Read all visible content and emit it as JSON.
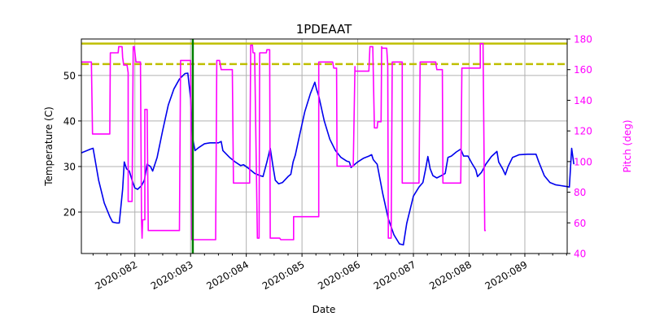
{
  "chart_data": {
    "type": "line",
    "title": "1PDEAAT",
    "xlabel": "Date",
    "ylabel": "Temperature (C)",
    "y2label": "Pitch (deg)",
    "xlim": [
      81.04,
      89.76
    ],
    "ylim": [
      10.9,
      58.0
    ],
    "y2lim": [
      40,
      180
    ],
    "xticks": [
      82,
      83,
      84,
      85,
      86,
      87,
      88,
      89
    ],
    "xtick_labels": [
      "2020:082",
      "2020:083",
      "2020:084",
      "2020:085",
      "2020:086",
      "2020:087",
      "2020:088",
      "2020:089"
    ],
    "yticks": [
      20,
      30,
      40,
      50
    ],
    "y2ticks": [
      40,
      60,
      80,
      100,
      120,
      140,
      160,
      180
    ],
    "grid": true,
    "legend": null,
    "colors": {
      "temperature": "#0000ee",
      "pitch": "#ff00ff",
      "limit_solid": "#bfbf00",
      "limit_dashed": "#bfbf00",
      "now_line": "#008000",
      "axis_right": "#ff00ff",
      "grid": "#b0b0b0"
    },
    "hlines": [
      {
        "name": "planning limit",
        "y": 57.0,
        "style": "solid",
        "color": "#bfbf00"
      },
      {
        "name": "caution limit",
        "y": 52.5,
        "style": "dashed",
        "color": "#bfbf00"
      }
    ],
    "vlines": [
      {
        "name": "current time",
        "x": 83.04,
        "color": "#008000"
      }
    ],
    "series": [
      {
        "name": "Temperature",
        "axis": "left",
        "color": "#0000ee",
        "points": [
          [
            81.04,
            33.0
          ],
          [
            81.2,
            33.8
          ],
          [
            81.25,
            34.0
          ],
          [
            81.35,
            27.0
          ],
          [
            81.45,
            22.0
          ],
          [
            81.55,
            19.0
          ],
          [
            81.6,
            17.8
          ],
          [
            81.67,
            17.6
          ],
          [
            81.72,
            17.6
          ],
          [
            81.78,
            25.0
          ],
          [
            81.81,
            31.0
          ],
          [
            81.85,
            29.5
          ],
          [
            81.9,
            29.0
          ],
          [
            81.95,
            27.0
          ],
          [
            82.0,
            25.3
          ],
          [
            82.05,
            25.0
          ],
          [
            82.12,
            25.8
          ],
          [
            82.17,
            27.0
          ],
          [
            82.22,
            30.5
          ],
          [
            82.28,
            30.0
          ],
          [
            82.32,
            29.0
          ],
          [
            82.4,
            32.0
          ],
          [
            82.5,
            38.0
          ],
          [
            82.6,
            43.5
          ],
          [
            82.7,
            47.0
          ],
          [
            82.8,
            49.2
          ],
          [
            82.9,
            50.4
          ],
          [
            82.95,
            50.5
          ],
          [
            83.0,
            45.0
          ],
          [
            83.04,
            36.0
          ],
          [
            83.08,
            33.5
          ],
          [
            83.15,
            34.2
          ],
          [
            83.25,
            35.0
          ],
          [
            83.35,
            35.2
          ],
          [
            83.5,
            35.2
          ],
          [
            83.55,
            35.5
          ],
          [
            83.58,
            33.5
          ],
          [
            83.7,
            32.0
          ],
          [
            83.8,
            31.0
          ],
          [
            83.9,
            30.2
          ],
          [
            83.95,
            30.4
          ],
          [
            84.05,
            29.5
          ],
          [
            84.15,
            28.5
          ],
          [
            84.25,
            28.0
          ],
          [
            84.3,
            27.8
          ],
          [
            84.37,
            31.0
          ],
          [
            84.43,
            34.0
          ],
          [
            84.48,
            30.0
          ],
          [
            84.52,
            27.0
          ],
          [
            84.58,
            26.2
          ],
          [
            84.65,
            26.5
          ],
          [
            84.75,
            27.8
          ],
          [
            84.8,
            28.3
          ],
          [
            84.84,
            31.0
          ],
          [
            84.88,
            32.5
          ],
          [
            84.95,
            36.5
          ],
          [
            85.05,
            42.0
          ],
          [
            85.15,
            46.0
          ],
          [
            85.23,
            48.5
          ],
          [
            85.26,
            47.0
          ],
          [
            85.3,
            45.5
          ],
          [
            85.4,
            40.0
          ],
          [
            85.5,
            36.0
          ],
          [
            85.6,
            33.5
          ],
          [
            85.7,
            32.0
          ],
          [
            85.8,
            31.2
          ],
          [
            85.85,
            31.0
          ],
          [
            85.88,
            29.8
          ],
          [
            86.0,
            31.0
          ],
          [
            86.1,
            31.8
          ],
          [
            86.2,
            32.3
          ],
          [
            86.25,
            32.6
          ],
          [
            86.28,
            31.5
          ],
          [
            86.35,
            30.5
          ],
          [
            86.45,
            24.0
          ],
          [
            86.55,
            18.5
          ],
          [
            86.65,
            15.0
          ],
          [
            86.75,
            13.0
          ],
          [
            86.82,
            12.8
          ],
          [
            86.88,
            17.5
          ],
          [
            86.95,
            21.0
          ],
          [
            87.0,
            23.5
          ],
          [
            87.1,
            25.5
          ],
          [
            87.17,
            26.5
          ],
          [
            87.22,
            29.5
          ],
          [
            87.26,
            32.2
          ],
          [
            87.3,
            29.5
          ],
          [
            87.35,
            28.0
          ],
          [
            87.42,
            27.5
          ],
          [
            87.5,
            28.0
          ],
          [
            87.57,
            28.5
          ],
          [
            87.62,
            32.0
          ],
          [
            87.68,
            32.3
          ],
          [
            87.77,
            33.2
          ],
          [
            87.85,
            33.8
          ],
          [
            87.9,
            32.3
          ],
          [
            87.98,
            32.3
          ],
          [
            88.05,
            30.7
          ],
          [
            88.12,
            29.3
          ],
          [
            88.15,
            27.8
          ],
          [
            88.22,
            28.7
          ],
          [
            88.3,
            30.5
          ],
          [
            88.4,
            32.2
          ],
          [
            88.5,
            33.3
          ],
          [
            88.53,
            31.0
          ],
          [
            88.6,
            29.5
          ],
          [
            88.65,
            28.2
          ],
          [
            88.7,
            30.0
          ],
          [
            88.78,
            32.0
          ],
          [
            88.9,
            32.6
          ],
          [
            89.05,
            32.7
          ],
          [
            89.2,
            32.7
          ],
          [
            89.25,
            31.0
          ],
          [
            89.35,
            28.0
          ],
          [
            89.45,
            26.5
          ],
          [
            89.55,
            26.0
          ],
          [
            89.65,
            25.8
          ],
          [
            89.75,
            25.6
          ],
          [
            89.8,
            25.5
          ],
          [
            89.84,
            34.0
          ],
          [
            89.88,
            30.5
          ]
        ]
      },
      {
        "name": "Pitch",
        "axis": "right",
        "color": "#ff00ff",
        "points": [
          [
            81.04,
            165
          ],
          [
            81.2,
            165
          ],
          [
            81.22,
            165
          ],
          [
            81.24,
            118
          ],
          [
            81.5,
            118
          ],
          [
            81.55,
            118
          ],
          [
            81.56,
            171
          ],
          [
            81.7,
            171
          ],
          [
            81.71,
            175
          ],
          [
            81.77,
            175
          ],
          [
            81.78,
            168
          ],
          [
            81.8,
            163
          ],
          [
            81.86,
            163
          ],
          [
            81.88,
            158
          ],
          [
            81.88,
            74
          ],
          [
            81.95,
            74
          ],
          [
            81.97,
            175
          ],
          [
            81.99,
            175
          ],
          [
            82.02,
            165
          ],
          [
            82.1,
            165
          ],
          [
            82.12,
            62
          ],
          [
            82.13,
            50
          ],
          [
            82.14,
            62
          ],
          [
            82.18,
            62
          ],
          [
            82.18,
            134
          ],
          [
            82.22,
            134
          ],
          [
            82.24,
            55
          ],
          [
            82.8,
            55
          ],
          [
            82.82,
            166
          ],
          [
            83.0,
            166
          ],
          [
            83.02,
            49
          ],
          [
            83.45,
            49
          ],
          [
            83.47,
            166
          ],
          [
            83.52,
            166
          ],
          [
            83.55,
            160
          ],
          [
            83.75,
            160
          ],
          [
            83.77,
            86
          ],
          [
            84.06,
            86
          ],
          [
            84.08,
            176
          ],
          [
            84.11,
            176
          ],
          [
            84.12,
            171
          ],
          [
            84.15,
            171
          ],
          [
            84.2,
            50
          ],
          [
            84.23,
            50
          ],
          [
            84.24,
            171
          ],
          [
            84.36,
            171
          ],
          [
            84.37,
            173
          ],
          [
            84.42,
            173
          ],
          [
            84.43,
            50
          ],
          [
            84.6,
            50
          ],
          [
            84.62,
            49
          ],
          [
            84.85,
            49
          ],
          [
            84.85,
            64
          ],
          [
            85.3,
            64
          ],
          [
            85.3,
            165
          ],
          [
            85.55,
            165
          ],
          [
            85.57,
            161
          ],
          [
            85.62,
            161
          ],
          [
            85.63,
            97
          ],
          [
            85.92,
            97
          ],
          [
            85.95,
            162
          ],
          [
            85.95,
            159
          ],
          [
            86.2,
            159
          ],
          [
            86.22,
            175
          ],
          [
            86.27,
            175
          ],
          [
            86.3,
            122
          ],
          [
            86.35,
            122
          ],
          [
            86.36,
            126
          ],
          [
            86.42,
            126
          ],
          [
            86.43,
            175
          ],
          [
            86.44,
            174
          ],
          [
            86.52,
            174
          ],
          [
            86.54,
            163
          ],
          [
            86.55,
            50
          ],
          [
            86.6,
            50
          ],
          [
            86.62,
            165
          ],
          [
            86.8,
            165
          ],
          [
            86.8,
            86
          ],
          [
            87.1,
            86
          ],
          [
            87.12,
            165
          ],
          [
            87.4,
            165
          ],
          [
            87.42,
            160
          ],
          [
            87.52,
            160
          ],
          [
            87.53,
            86
          ],
          [
            87.85,
            86
          ],
          [
            87.87,
            161
          ],
          [
            88.2,
            161
          ],
          [
            88.2,
            177
          ],
          [
            88.25,
            177
          ],
          [
            88.28,
            55
          ],
          [
            88.3,
            55
          ]
        ]
      }
    ]
  },
  "plot": {
    "title": "1PDEAAT",
    "xlabel": "Date",
    "ylabel_left": "Temperature (C)",
    "ylabel_right": "Pitch (deg)"
  }
}
